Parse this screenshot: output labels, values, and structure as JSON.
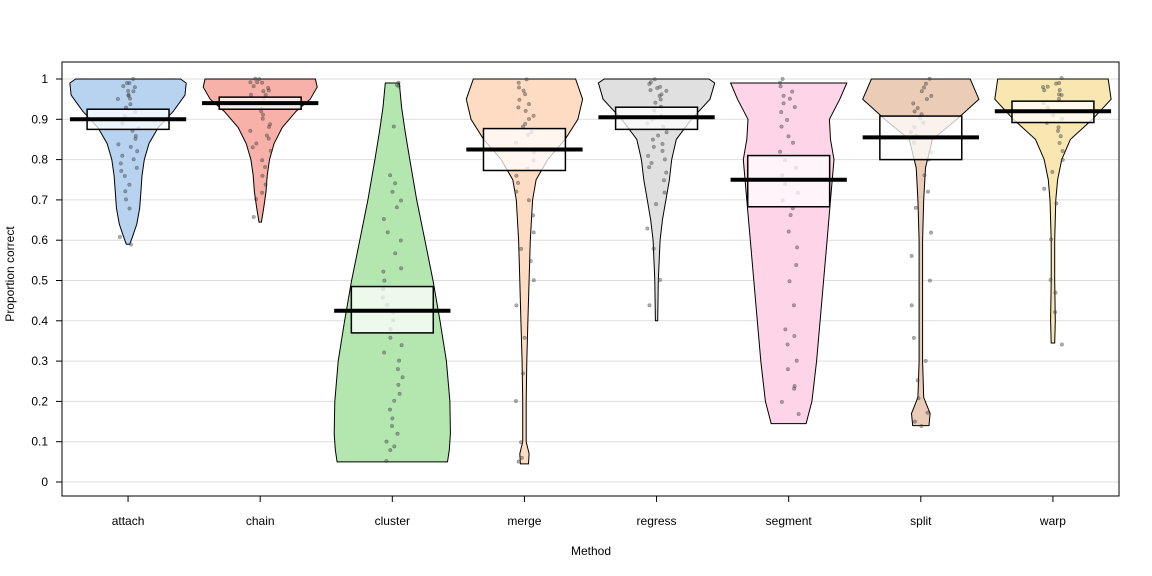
{
  "chart_data": {
    "type": "pirate",
    "title": "",
    "xlabel": "Method",
    "ylabel": "Proportion correct",
    "ylim": [
      -0.04,
      1.04
    ],
    "yticks": [
      0,
      0.1,
      0.2,
      0.3,
      0.4,
      0.5,
      0.6,
      0.7,
      0.8,
      0.9,
      1
    ],
    "ytick_labels": [
      "0",
      "0.1",
      "0.2",
      "0.3",
      "0.4",
      "0.5",
      "0.6",
      "0.7",
      "0.8",
      "0.9",
      "1"
    ],
    "grid": true,
    "categories": [
      "attach",
      "chain",
      "cluster",
      "merge",
      "regress",
      "segment",
      "split",
      "warp"
    ],
    "colors": [
      "#b7d3f0",
      "#f7b1a8",
      "#b4e6b0",
      "#fedcc3",
      "#e0e0e0",
      "#fdd4e8",
      "#ebcdb7",
      "#f9e7b1"
    ],
    "groups": [
      {
        "name": "attach",
        "mean": 0.9,
        "box_low": 0.875,
        "box_high": 0.925,
        "density": [
          [
            0.59,
            0.03
          ],
          [
            0.61,
            0.08
          ],
          [
            0.64,
            0.15
          ],
          [
            0.68,
            0.2
          ],
          [
            0.72,
            0.22
          ],
          [
            0.76,
            0.24
          ],
          [
            0.8,
            0.28
          ],
          [
            0.84,
            0.36
          ],
          [
            0.88,
            0.52
          ],
          [
            0.92,
            0.78
          ],
          [
            0.96,
            0.98
          ],
          [
            0.99,
            1.0
          ],
          [
            1.0,
            0.9
          ]
        ],
        "points": [
          1,
          0.99,
          0.99,
          0.98,
          0.98,
          0.97,
          0.97,
          0.96,
          0.96,
          0.95,
          0.95,
          0.94,
          0.93,
          0.92,
          0.91,
          0.9,
          0.89,
          0.88,
          0.87,
          0.86,
          0.85,
          0.84,
          0.83,
          0.82,
          0.81,
          0.8,
          0.79,
          0.78,
          0.77,
          0.76,
          0.74,
          0.72,
          0.7,
          0.68,
          0.61,
          0.59
        ]
      },
      {
        "name": "chain",
        "mean": 0.94,
        "box_low": 0.925,
        "box_high": 0.955,
        "density": [
          [
            0.645,
            0.02
          ],
          [
            0.68,
            0.06
          ],
          [
            0.72,
            0.1
          ],
          [
            0.76,
            0.12
          ],
          [
            0.8,
            0.16
          ],
          [
            0.84,
            0.24
          ],
          [
            0.88,
            0.38
          ],
          [
            0.92,
            0.62
          ],
          [
            0.95,
            0.86
          ],
          [
            0.98,
            0.98
          ],
          [
            1.0,
            0.95
          ]
        ],
        "points": [
          1,
          1,
          0.99,
          0.99,
          0.99,
          0.98,
          0.98,
          0.97,
          0.97,
          0.96,
          0.96,
          0.95,
          0.94,
          0.93,
          0.92,
          0.91,
          0.9,
          0.89,
          0.88,
          0.87,
          0.86,
          0.85,
          0.84,
          0.83,
          0.82,
          0.8,
          0.78,
          0.76,
          0.74,
          0.72,
          0.7,
          0.66
        ]
      },
      {
        "name": "cluster",
        "mean": 0.425,
        "box_low": 0.37,
        "box_high": 0.485,
        "density": [
          [
            0.05,
            0.95
          ],
          [
            0.08,
            0.98
          ],
          [
            0.12,
            1.0
          ],
          [
            0.2,
            0.99
          ],
          [
            0.3,
            0.93
          ],
          [
            0.4,
            0.82
          ],
          [
            0.5,
            0.7
          ],
          [
            0.6,
            0.56
          ],
          [
            0.7,
            0.42
          ],
          [
            0.8,
            0.3
          ],
          [
            0.87,
            0.22
          ],
          [
            0.93,
            0.16
          ],
          [
            0.99,
            0.12
          ]
        ],
        "points": [
          0.99,
          0.985,
          0.98,
          0.88,
          0.76,
          0.74,
          0.72,
          0.7,
          0.68,
          0.65,
          0.62,
          0.6,
          0.57,
          0.53,
          0.52,
          0.5,
          0.48,
          0.46,
          0.44,
          0.42,
          0.4,
          0.38,
          0.36,
          0.34,
          0.32,
          0.3,
          0.28,
          0.26,
          0.24,
          0.22,
          0.2,
          0.18,
          0.16,
          0.14,
          0.12,
          0.1,
          0.09,
          0.08,
          0.05
        ]
      },
      {
        "name": "merge",
        "mean": 0.825,
        "box_low": 0.773,
        "box_high": 0.877,
        "density": [
          [
            0.045,
            0.07
          ],
          [
            0.07,
            0.08
          ],
          [
            0.1,
            0.03
          ],
          [
            0.2,
            0.03
          ],
          [
            0.3,
            0.04
          ],
          [
            0.4,
            0.06
          ],
          [
            0.5,
            0.08
          ],
          [
            0.6,
            0.1
          ],
          [
            0.7,
            0.14
          ],
          [
            0.75,
            0.2
          ],
          [
            0.8,
            0.4
          ],
          [
            0.85,
            0.7
          ],
          [
            0.9,
            0.92
          ],
          [
            0.95,
            1.0
          ],
          [
            1.0,
            0.88
          ]
        ],
        "points": [
          1,
          0.99,
          0.98,
          0.97,
          0.96,
          0.95,
          0.94,
          0.93,
          0.92,
          0.91,
          0.9,
          0.89,
          0.88,
          0.87,
          0.86,
          0.84,
          0.82,
          0.8,
          0.78,
          0.76,
          0.74,
          0.72,
          0.7,
          0.66,
          0.62,
          0.58,
          0.55,
          0.5,
          0.44,
          0.36,
          0.27,
          0.2,
          0.1,
          0.06,
          0.05
        ]
      },
      {
        "name": "regress",
        "mean": 0.905,
        "box_low": 0.875,
        "box_high": 0.93,
        "density": [
          [
            0.4,
            0.02
          ],
          [
            0.5,
            0.03
          ],
          [
            0.6,
            0.06
          ],
          [
            0.65,
            0.1
          ],
          [
            0.7,
            0.16
          ],
          [
            0.75,
            0.22
          ],
          [
            0.8,
            0.26
          ],
          [
            0.85,
            0.34
          ],
          [
            0.9,
            0.6
          ],
          [
            0.95,
            0.92
          ],
          [
            0.99,
            1.0
          ],
          [
            1.0,
            0.9
          ]
        ],
        "points": [
          1,
          0.99,
          0.99,
          0.98,
          0.98,
          0.97,
          0.97,
          0.96,
          0.96,
          0.95,
          0.94,
          0.93,
          0.92,
          0.91,
          0.9,
          0.89,
          0.88,
          0.87,
          0.86,
          0.85,
          0.84,
          0.83,
          0.82,
          0.81,
          0.8,
          0.79,
          0.78,
          0.77,
          0.75,
          0.72,
          0.69,
          0.63,
          0.58,
          0.5,
          0.44
        ]
      },
      {
        "name": "segment",
        "mean": 0.75,
        "box_low": 0.683,
        "box_high": 0.81,
        "density": [
          [
            0.145,
            0.3
          ],
          [
            0.2,
            0.4
          ],
          [
            0.3,
            0.48
          ],
          [
            0.4,
            0.54
          ],
          [
            0.5,
            0.6
          ],
          [
            0.6,
            0.66
          ],
          [
            0.7,
            0.72
          ],
          [
            0.8,
            0.78
          ],
          [
            0.85,
            0.72
          ],
          [
            0.9,
            0.7
          ],
          [
            0.95,
            0.88
          ],
          [
            0.99,
            1.0
          ]
        ],
        "points": [
          1,
          0.99,
          0.98,
          0.97,
          0.96,
          0.95,
          0.94,
          0.93,
          0.92,
          0.9,
          0.88,
          0.86,
          0.84,
          0.82,
          0.8,
          0.78,
          0.76,
          0.74,
          0.72,
          0.7,
          0.68,
          0.66,
          0.62,
          0.58,
          0.54,
          0.5,
          0.44,
          0.38,
          0.36,
          0.34,
          0.3,
          0.28,
          0.24,
          0.23,
          0.2,
          0.17
        ]
      },
      {
        "name": "split",
        "mean": 0.855,
        "box_low": 0.8,
        "box_high": 0.908,
        "density": [
          [
            0.14,
            0.14
          ],
          [
            0.17,
            0.16
          ],
          [
            0.21,
            0.05
          ],
          [
            0.3,
            0.03
          ],
          [
            0.4,
            0.03
          ],
          [
            0.5,
            0.03
          ],
          [
            0.6,
            0.03
          ],
          [
            0.7,
            0.05
          ],
          [
            0.78,
            0.08
          ],
          [
            0.85,
            0.2
          ],
          [
            0.9,
            0.62
          ],
          [
            0.95,
            1.0
          ],
          [
            1.0,
            0.85
          ]
        ],
        "points": [
          1,
          0.99,
          0.98,
          0.97,
          0.96,
          0.95,
          0.94,
          0.93,
          0.92,
          0.91,
          0.9,
          0.89,
          0.88,
          0.87,
          0.86,
          0.84,
          0.82,
          0.8,
          0.76,
          0.72,
          0.68,
          0.62,
          0.56,
          0.5,
          0.44,
          0.36,
          0.3,
          0.25,
          0.21,
          0.17,
          0.15,
          0.14
        ]
      },
      {
        "name": "warp",
        "mean": 0.92,
        "box_low": 0.892,
        "box_high": 0.945,
        "density": [
          [
            0.345,
            0.03
          ],
          [
            0.4,
            0.04
          ],
          [
            0.5,
            0.03
          ],
          [
            0.6,
            0.03
          ],
          [
            0.7,
            0.05
          ],
          [
            0.75,
            0.08
          ],
          [
            0.8,
            0.15
          ],
          [
            0.85,
            0.3
          ],
          [
            0.9,
            0.68
          ],
          [
            0.95,
            1.0
          ],
          [
            1.0,
            0.95
          ]
        ],
        "points": [
          1,
          0.99,
          0.99,
          0.98,
          0.98,
          0.97,
          0.97,
          0.96,
          0.96,
          0.95,
          0.94,
          0.93,
          0.92,
          0.91,
          0.9,
          0.89,
          0.88,
          0.87,
          0.86,
          0.84,
          0.82,
          0.8,
          0.77,
          0.73,
          0.69,
          0.6,
          0.5,
          0.47,
          0.42,
          0.34
        ]
      }
    ]
  }
}
